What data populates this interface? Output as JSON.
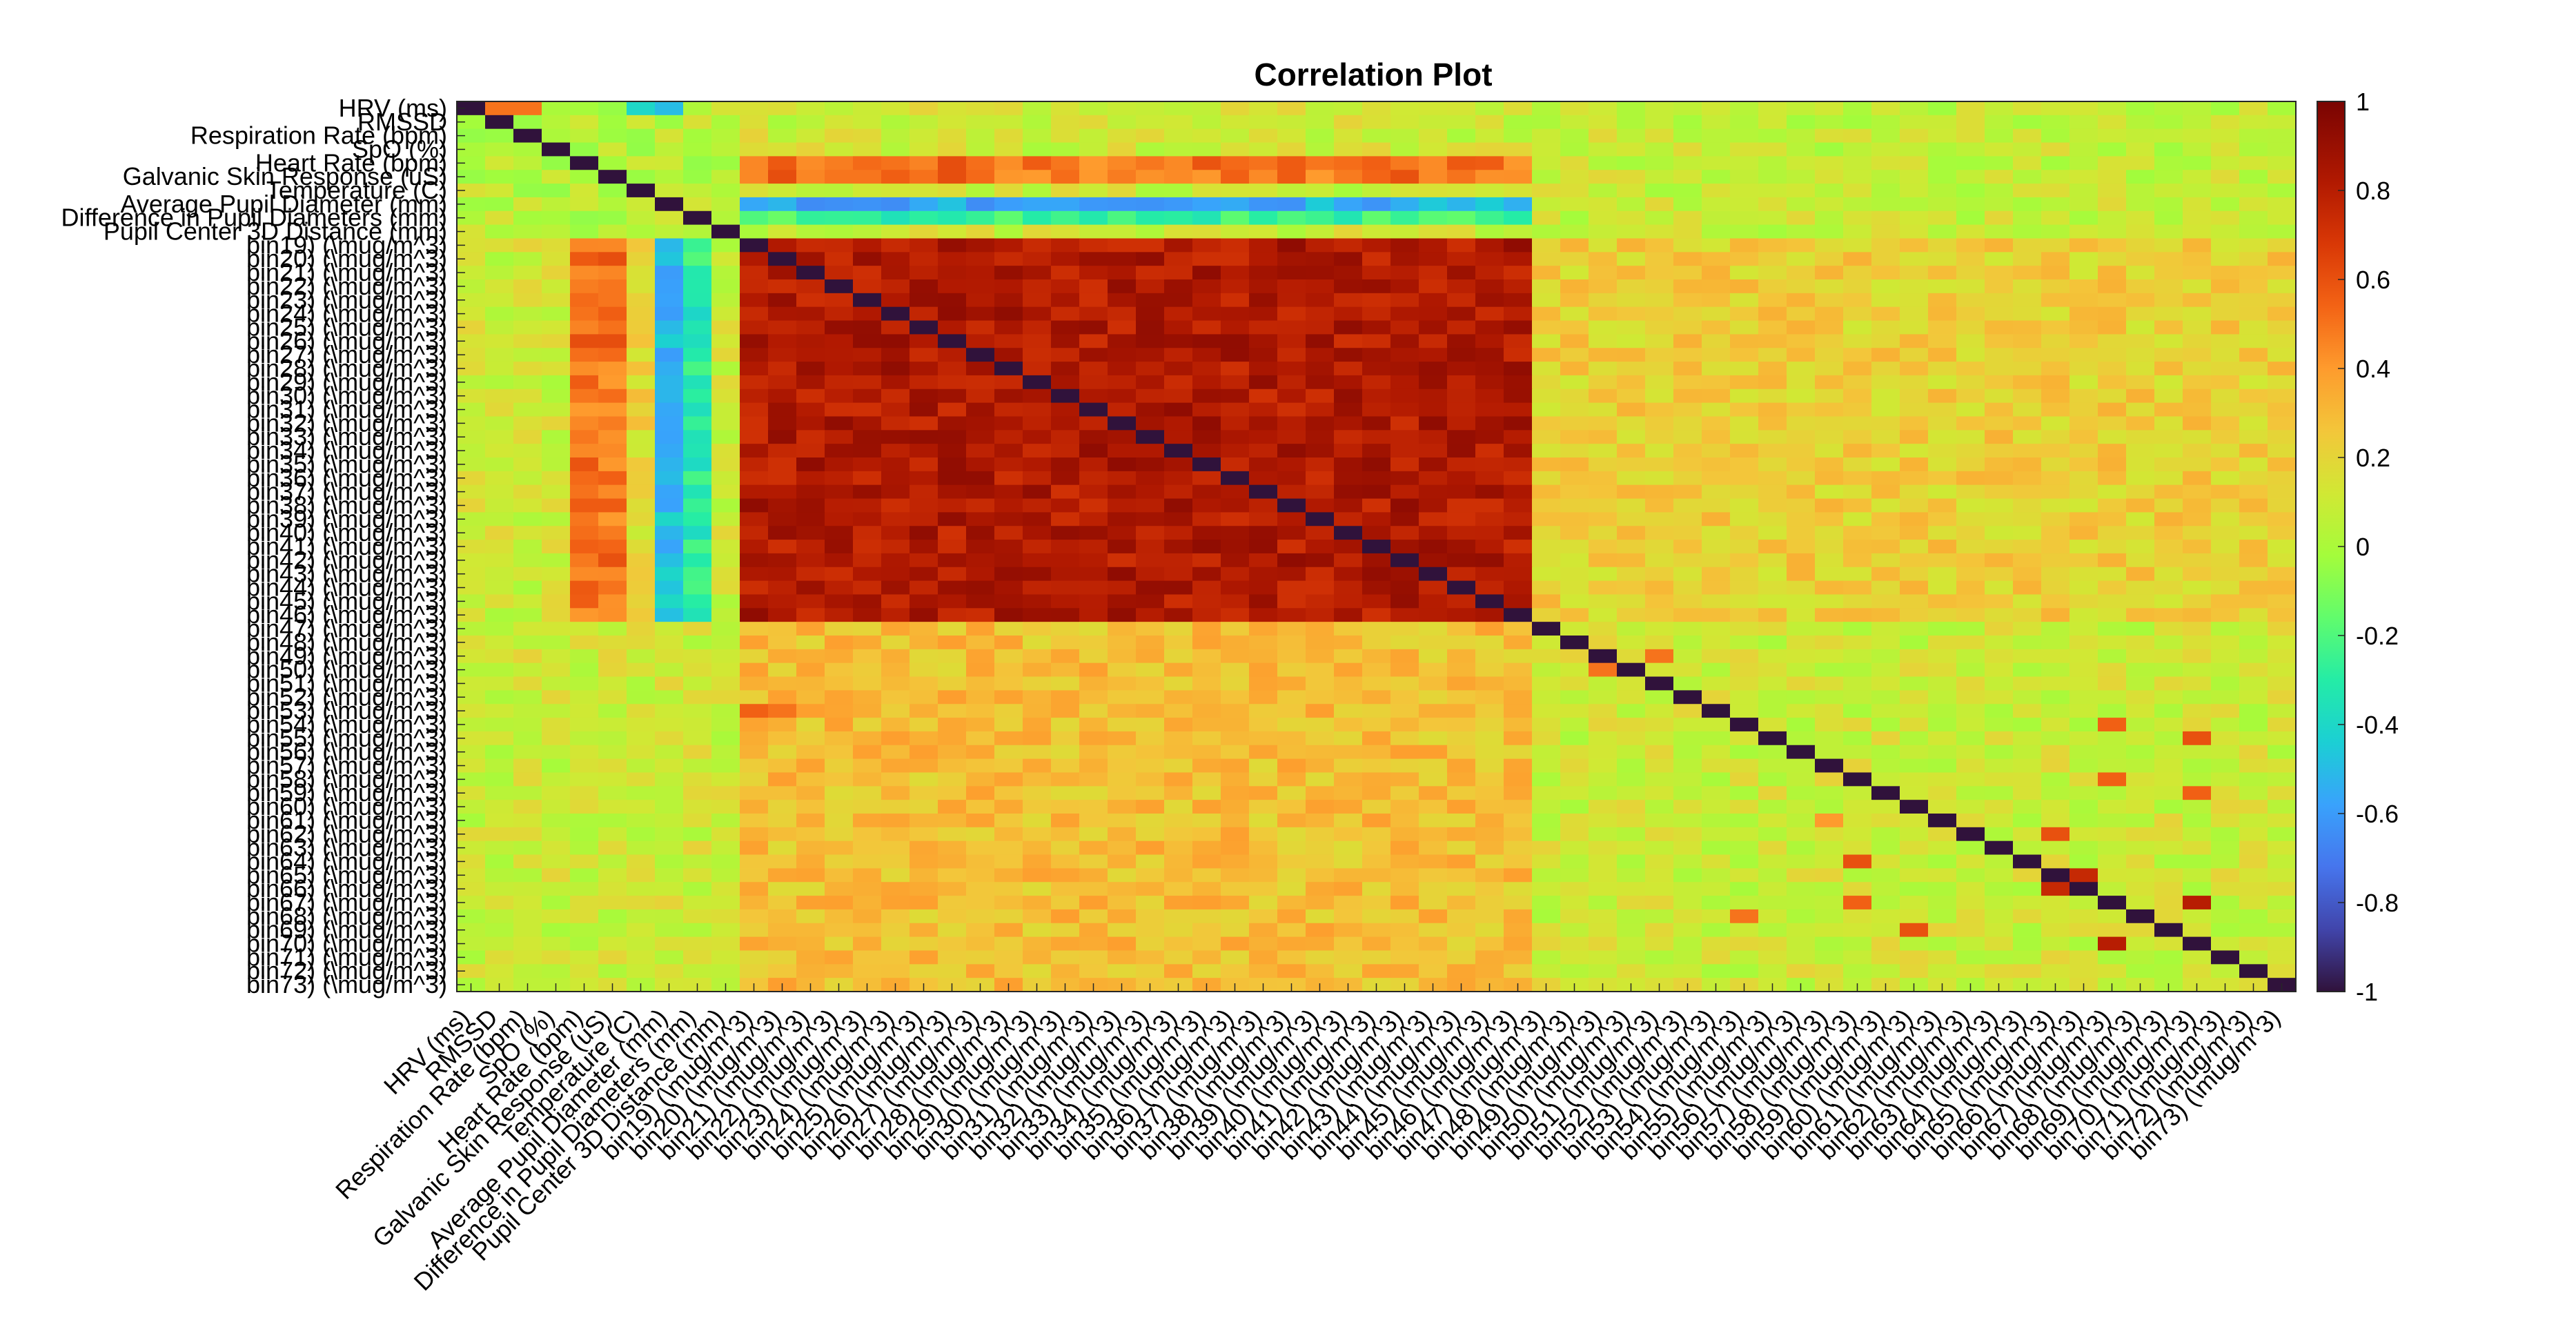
{
  "chart_data": {
    "type": "heatmap",
    "title": "Correlation Plot",
    "colormap": "turbo",
    "clim": [
      -1,
      1
    ],
    "colorbar_ticks": [
      1,
      0.8,
      0.6,
      0.4,
      0.2,
      0,
      -0.2,
      -0.4,
      -0.6,
      -0.8,
      -1
    ],
    "colorbar_tick_labels": [
      "1",
      "0.8",
      "0.6",
      "0.4",
      "0.2",
      "0",
      "-0.2",
      "-0.4",
      "-0.6",
      "-0.8",
      "-1"
    ],
    "variables": [
      "HRV     (ms)",
      "RMSSD",
      "Respiration Rate (bpm)",
      "SpO   (%)",
      "Heart Rate (bpm)",
      "Galvanic Skin Response (uS)",
      "Temperature (C)",
      "Average Pupil Diameter (mm)",
      "Difference in Pupil Diameters (mm)",
      "Pupil Center 3D Distance (mm)",
      "bin19) (\\mug/m^3)",
      "bin20) (\\mug/m^3)",
      "bin21) (\\mug/m^3)",
      "bin22) (\\mug/m^3)",
      "bin23) (\\mug/m^3)",
      "bin24) (\\mug/m^3)",
      "bin25) (\\mug/m^3)",
      "bin26) (\\mug/m^3)",
      "bin27) (\\mug/m^3)",
      "bin28) (\\mug/m^3)",
      "bin29) (\\mug/m^3)",
      "bin30) (\\mug/m^3)",
      "bin31) (\\mug/m^3)",
      "bin32) (\\mug/m^3)",
      "bin33) (\\mug/m^3)",
      "bin34) (\\mug/m^3)",
      "bin35) (\\mug/m^3)",
      "bin36) (\\mug/m^3)",
      "bin37) (\\mug/m^3)",
      "bin38) (\\mug/m^3)",
      "bin39) (\\mug/m^3)",
      "bin40) (\\mug/m^3)",
      "bin41) (\\mug/m^3)",
      "bin42) (\\mug/m^3)",
      "bin43) (\\mug/m^3)",
      "bin44) (\\mug/m^3)",
      "bin45) (\\mug/m^3)",
      "bin46) (\\mug/m^3)",
      "bin47) (\\mug/m^3)",
      "bin48) (\\mug/m^3)",
      "bin49) (\\mug/m^3)",
      "bin50) (\\mug/m^3)",
      "bin51) (\\mug/m^3)",
      "bin52) (\\mug/m^3)",
      "bin53) (\\mug/m^3)",
      "bin54) (\\mug/m^3)",
      "bin55) (\\mug/m^3)",
      "bin56) (\\mug/m^3)",
      "bin57) (\\mug/m^3)",
      "bin58) (\\mug/m^3)",
      "bin59) (\\mug/m^3)",
      "bin60) (\\mug/m^3)",
      "bin61) (\\mug/m^3)",
      "bin62) (\\mug/m^3)",
      "bin63) (\\mug/m^3)",
      "bin64) (\\mug/m^3)",
      "bin65) (\\mug/m^3)",
      "bin66) (\\mug/m^3)",
      "bin67) (\\mug/m^3)",
      "bin68) (\\mug/m^3)",
      "bin69) (\\mug/m^3)",
      "bin70) (\\mug/m^3)",
      "bin71) (\\mug/m^3)",
      "bin72) (\\mug/m^3)",
      "bin73) (\\mug/m^3)"
    ],
    "diagonal_value": -1,
    "background_value": 0.1,
    "blocks": [
      {
        "rows": [
          10,
          37
        ],
        "cols": [
          10,
          37
        ],
        "value": 0.82
      },
      {
        "rows": [
          10,
          37
        ],
        "cols": [
          38,
          42
        ],
        "value": 0.4
      },
      {
        "rows": [
          38,
          42
        ],
        "cols": [
          10,
          37
        ],
        "value": 0.4
      },
      {
        "rows": [
          38,
          64
        ],
        "cols": [
          10,
          37
        ],
        "value": 0.28
      },
      {
        "rows": [
          10,
          37
        ],
        "cols": [
          38,
          64
        ],
        "value": 0.22
      },
      {
        "rows": [
          10,
          37
        ],
        "cols": [
          4,
          5
        ],
        "value": 0.5
      },
      {
        "rows": [
          10,
          37
        ],
        "cols": [
          6,
          6
        ],
        "value": 0.2
      },
      {
        "rows": [
          10,
          37
        ],
        "cols": [
          7,
          7
        ],
        "value": -0.5
      },
      {
        "rows": [
          10,
          37
        ],
        "cols": [
          8,
          8
        ],
        "value": -0.3
      },
      {
        "rows": [
          4,
          5
        ],
        "cols": [
          10,
          37
        ],
        "value": 0.5
      },
      {
        "rows": [
          7,
          7
        ],
        "cols": [
          10,
          37
        ],
        "value": -0.55
      },
      {
        "rows": [
          8,
          8
        ],
        "cols": [
          10,
          37
        ],
        "value": -0.25
      },
      {
        "rows": [
          0,
          9
        ],
        "cols": [
          0,
          9
        ],
        "value": 0.05
      },
      {
        "rows": [
          0,
          9
        ],
        "cols": [
          38,
          64
        ],
        "value": 0.08
      }
    ],
    "highlights": [
      {
        "row": 0,
        "col": 1,
        "value": 0.5
      },
      {
        "row": 0,
        "col": 2,
        "value": 0.5
      },
      {
        "row": 0,
        "col": 6,
        "value": -0.4
      },
      {
        "row": 0,
        "col": 7,
        "value": -0.5
      },
      {
        "row": 56,
        "col": 57,
        "value": 0.75
      },
      {
        "row": 57,
        "col": 56,
        "value": 0.75
      },
      {
        "row": 58,
        "col": 61,
        "value": 0.8
      },
      {
        "row": 61,
        "col": 58,
        "value": 0.8
      },
      {
        "row": 53,
        "col": 56,
        "value": 0.6
      },
      {
        "row": 55,
        "col": 49,
        "value": 0.6
      },
      {
        "row": 58,
        "col": 49,
        "value": 0.55
      },
      {
        "row": 49,
        "col": 58,
        "value": 0.55
      },
      {
        "row": 50,
        "col": 61,
        "value": 0.55
      },
      {
        "row": 46,
        "col": 61,
        "value": 0.6
      },
      {
        "row": 45,
        "col": 58,
        "value": 0.55
      },
      {
        "row": 59,
        "col": 45,
        "value": 0.5
      },
      {
        "row": 40,
        "col": 42,
        "value": 0.5
      },
      {
        "row": 41,
        "col": 40,
        "value": 0.5
      },
      {
        "row": 52,
        "col": 48,
        "value": 0.4
      },
      {
        "row": 60,
        "col": 51,
        "value": 0.6
      },
      {
        "row": 44,
        "col": 10,
        "value": 0.55
      },
      {
        "row": 44,
        "col": 11,
        "value": 0.5
      }
    ]
  }
}
